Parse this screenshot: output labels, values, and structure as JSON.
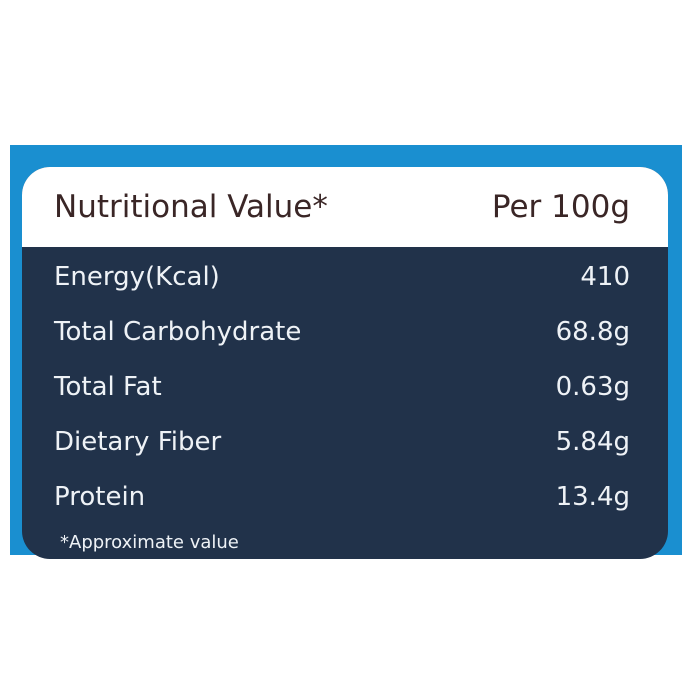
{
  "table": {
    "header": [
      "Nutritional Value*",
      "Per 100g"
    ],
    "rows": [
      [
        "Energy(Kcal)",
        "410"
      ],
      [
        "Total Carbohydrate",
        "68.8g"
      ],
      [
        "Total Fat",
        "0.63g"
      ],
      [
        "Dietary Fiber",
        "5.84g"
      ],
      [
        "Protein",
        "13.4g"
      ]
    ],
    "footnote": "*Approximate value"
  }
}
